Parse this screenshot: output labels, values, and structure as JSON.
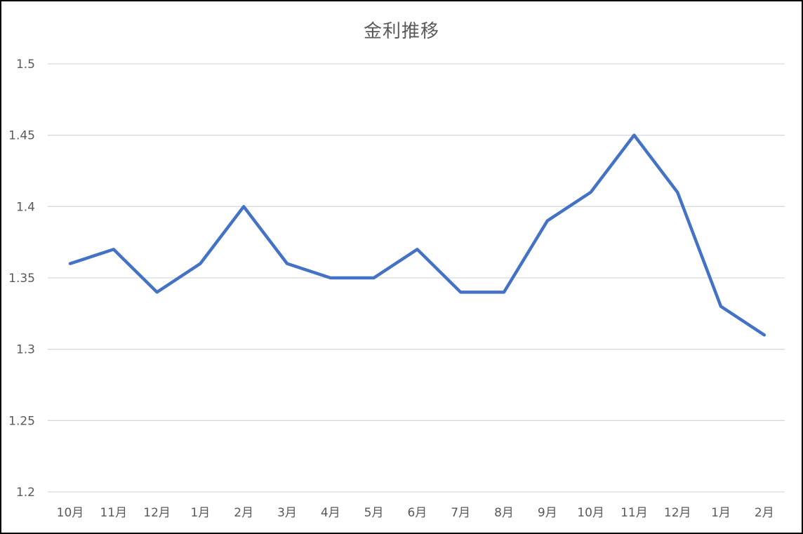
{
  "chart_data": {
    "type": "line",
    "title": "金利推移",
    "categories": [
      "10月",
      "11月",
      "12月",
      "1月",
      "2月",
      "3月",
      "4月",
      "5月",
      "6月",
      "7月",
      "8月",
      "9月",
      "10月",
      "11月",
      "12月",
      "1月",
      "2月"
    ],
    "series": [
      {
        "values": [
          1.36,
          1.37,
          1.34,
          1.36,
          1.4,
          1.36,
          1.35,
          1.35,
          1.37,
          1.34,
          1.34,
          1.39,
          1.41,
          1.45,
          1.41,
          1.33,
          1.31
        ],
        "color": "#4472C4"
      }
    ],
    "ylim": [
      1.2,
      1.5
    ],
    "yticks": [
      "1.2",
      "1.25",
      "1.3",
      "1.35",
      "1.4",
      "1.45",
      "1.5"
    ],
    "grid": true,
    "gridline_color": "#D9D9D9",
    "text_color": "#595959",
    "xlabel": "",
    "ylabel": ""
  }
}
